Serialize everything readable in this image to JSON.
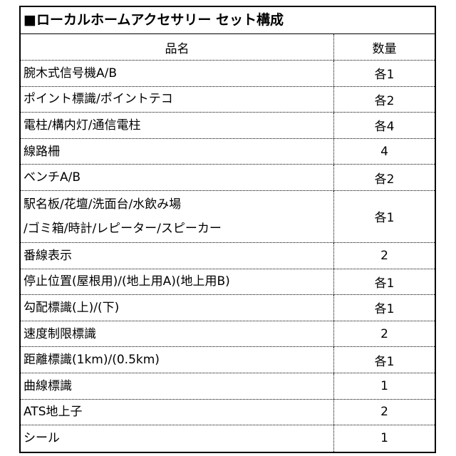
{
  "table": {
    "title": "■ローカルホームアクセサリー セット構成",
    "header": [
      "品名",
      "数量"
    ],
    "rows": [
      [
        [
          "腕木式信号機A/B"
        ],
        "各1"
      ],
      [
        [
          "ポイント標識/ポイントテコ"
        ],
        "各2"
      ],
      [
        [
          "電柱/構内灯/通信電柱"
        ],
        "各4"
      ],
      [
        [
          "線路柵"
        ],
        "4"
      ],
      [
        [
          "ベンチA/B"
        ],
        "各2"
      ],
      [
        [
          "駅名板/花壇/洗面台/水飲み場",
          "/ゴミ箱/時計/レピーター/スピーカー"
        ],
        "各1"
      ],
      [
        [
          "番線表示"
        ],
        "2"
      ],
      [
        [
          "停止位置(屋根用)/(地上用A)(地上用B)"
        ],
        "各1"
      ],
      [
        [
          "勾配標識(上)/(下)"
        ],
        "各1"
      ],
      [
        [
          "速度制限標識"
        ],
        "2"
      ],
      [
        [
          "距離標識(1km)/(0.5km)"
        ],
        "各1"
      ],
      [
        [
          "曲線標識"
        ],
        "1"
      ],
      [
        [
          "ATS地上子"
        ],
        "2"
      ],
      [
        [
          "シール"
        ],
        "1"
      ]
    ]
  }
}
